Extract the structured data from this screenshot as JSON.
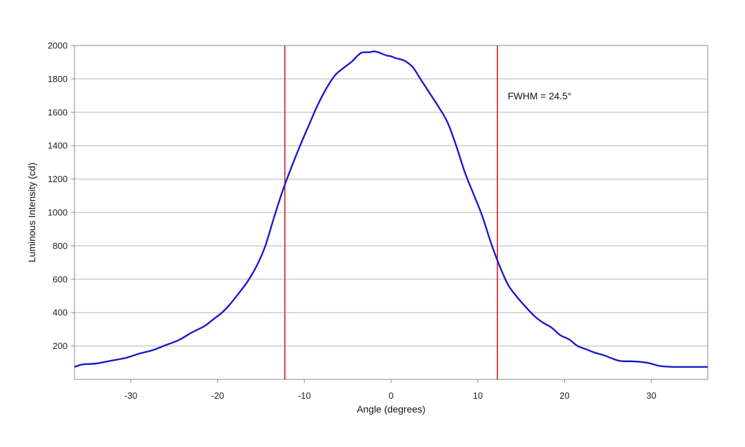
{
  "chart_data": {
    "type": "line",
    "xlabel": "Angle (degrees)",
    "ylabel": "Luminous Intensity (cd)",
    "xlim": [
      -36.5,
      36.5
    ],
    "ylim": [
      0,
      2000
    ],
    "x_ticks": [
      -30,
      -20,
      -10,
      0,
      10,
      20,
      30
    ],
    "y_ticks": [
      200,
      400,
      600,
      800,
      1000,
      1200,
      1400,
      1600,
      1800,
      2000
    ],
    "grid": "horizontal",
    "colors": {
      "series": "#1a17c9",
      "marker": "#c41e1e",
      "grid": "#b5b5b5",
      "frame": "#8a8a8a"
    },
    "series": [
      {
        "x": [
          -36.5,
          -35.5,
          -34,
          -32,
          -30.5,
          -29,
          -27.5,
          -26,
          -24.5,
          -23,
          -21.5,
          -20.5,
          -19.5,
          -18.5,
          -17.5,
          -16.5,
          -15.5,
          -14.5,
          -13.5,
          -12.5,
          -11.5,
          -10.5,
          -9.5,
          -8.5,
          -7.5,
          -6.5,
          -5.5,
          -4.5,
          -3.5,
          -2.5,
          -2,
          -1.5,
          -1,
          -0.5,
          0,
          0.5,
          1.5,
          2.5,
          3.5,
          4.5,
          5.5,
          6.5,
          7.5,
          8.5,
          9.5,
          10.5,
          11.5,
          12.5,
          13.5,
          14.5,
          15.5,
          16.5,
          17.5,
          18.5,
          19.5,
          20.5,
          21.5,
          22.5,
          23.5,
          24.5,
          25.5,
          26.5,
          28,
          29.5,
          31,
          32.5,
          33.5,
          34.5,
          35.5,
          36.5
        ],
        "y": [
          75,
          90,
          95,
          115,
          130,
          155,
          175,
          205,
          235,
          280,
          320,
          360,
          400,
          455,
          520,
          590,
          680,
          800,
          970,
          1130,
          1270,
          1400,
          1520,
          1640,
          1740,
          1820,
          1865,
          1905,
          1955,
          1960,
          1965,
          1960,
          1950,
          1940,
          1935,
          1925,
          1910,
          1870,
          1790,
          1710,
          1630,
          1540,
          1400,
          1240,
          1110,
          980,
          820,
          680,
          565,
          495,
          435,
          380,
          340,
          310,
          265,
          240,
          200,
          180,
          160,
          145,
          125,
          110,
          108,
          100,
          80,
          75,
          75,
          75,
          75,
          75
        ]
      }
    ],
    "markers": [
      {
        "x": -12.25
      },
      {
        "x": 12.25
      }
    ],
    "annotation": "FWHM = 24.5°"
  }
}
